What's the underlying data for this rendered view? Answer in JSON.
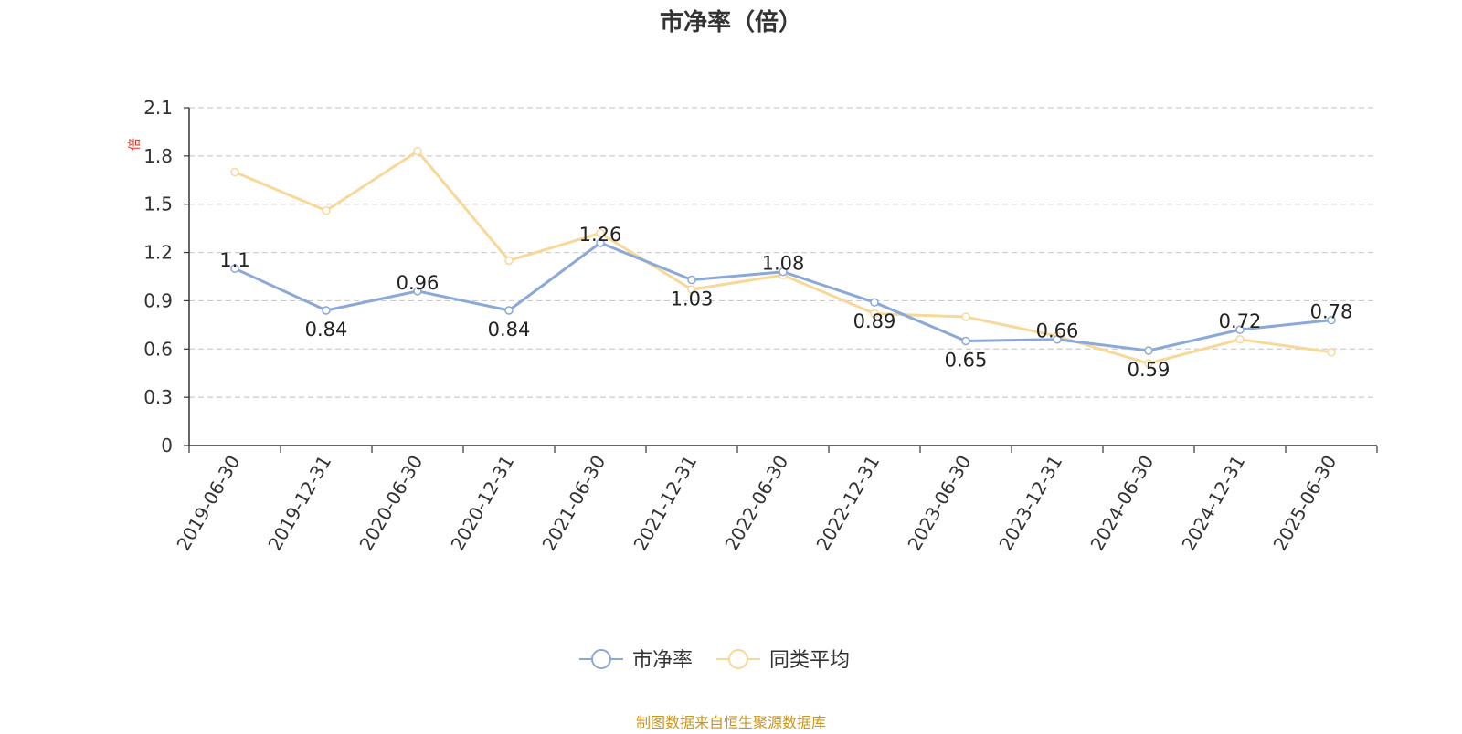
{
  "chart_data": {
    "type": "line",
    "title": "市净率（倍）",
    "ylabel": "倍",
    "xlabel": "",
    "ylim": [
      0,
      2.1
    ],
    "yticks": [
      "0",
      "0.3",
      "0.6",
      "0.9",
      "1.2",
      "1.5",
      "1.8",
      "2.1"
    ],
    "categories": [
      "2019-06-30",
      "2019-12-31",
      "2020-06-30",
      "2020-12-31",
      "2021-06-30",
      "2021-12-31",
      "2022-06-30",
      "2022-12-31",
      "2023-06-30",
      "2023-12-31",
      "2024-06-30",
      "2024-12-31",
      "2025-06-30"
    ],
    "series": [
      {
        "name": "市净率",
        "color": "#8aa8d8",
        "values": [
          1.1,
          0.84,
          0.96,
          0.84,
          1.26,
          1.03,
          1.08,
          0.89,
          0.65,
          0.66,
          0.59,
          0.72,
          0.78
        ],
        "labels": [
          "1.1",
          "0.84",
          "0.96",
          "0.84",
          "1.26",
          "1.03",
          "1.08",
          "0.89",
          "0.65",
          "0.66",
          "0.59",
          "0.72",
          "0.78"
        ]
      },
      {
        "name": "同类平均",
        "color": "#f8d898",
        "values": [
          1.7,
          1.46,
          1.83,
          1.15,
          1.32,
          0.97,
          1.06,
          0.82,
          0.8,
          0.68,
          0.51,
          0.66,
          0.58
        ]
      }
    ],
    "grid": true,
    "legend_position": "bottom-center",
    "source": "制图数据来自恒生聚源数据库"
  }
}
